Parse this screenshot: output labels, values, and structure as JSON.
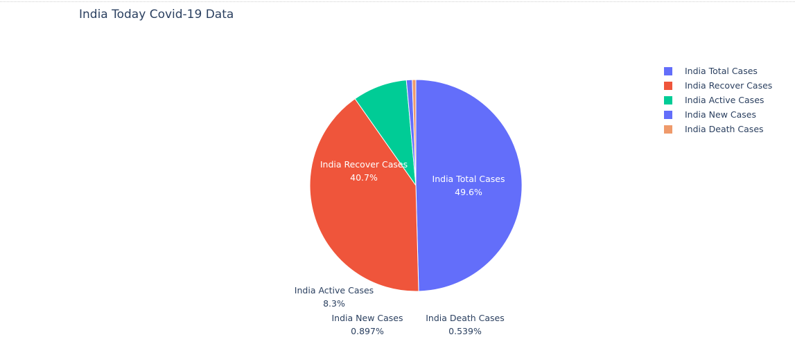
{
  "chart_data": {
    "type": "pie",
    "title": "India Today Covid-19 Data",
    "legend_position": "top-right",
    "slices": [
      {
        "label": "India Total Cases",
        "percent": 49.6,
        "percent_text": "49.6%",
        "color": "#636efa"
      },
      {
        "label": "India Recover Cases",
        "percent": 40.7,
        "percent_text": "40.7%",
        "color": "#ef553b"
      },
      {
        "label": "India Active Cases",
        "percent": 8.3,
        "percent_text": "8.3%",
        "color": "#00cc96"
      },
      {
        "label": "India New Cases",
        "percent": 0.897,
        "percent_text": "0.897%",
        "color": "#636efa"
      },
      {
        "label": "India Death Cases",
        "percent": 0.539,
        "percent_text": "0.539%",
        "color": "#ef9a6b"
      }
    ],
    "legend_order": [
      "India Total Cases",
      "India Recover Cases",
      "India Active Cases",
      "India New Cases",
      "India Death Cases"
    ],
    "colors": {
      "title": "#2a3f5f",
      "inside_label": "#ffffff",
      "outside_label": "#2a3f5f",
      "slice_border": "#ffffff"
    }
  }
}
